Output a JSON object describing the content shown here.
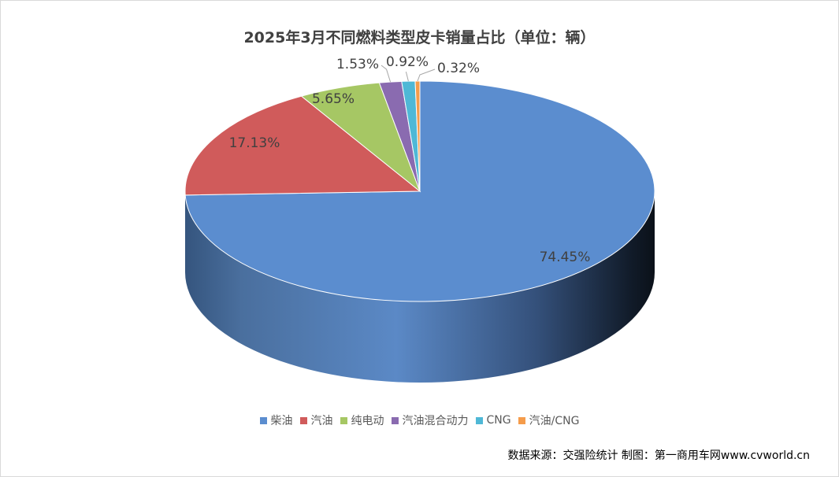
{
  "title": "2025年3月不同燃料类型皮卡销量占比（单位：辆）",
  "source": "数据来源：交强险统计 制图：第一商用车网www.cvworld.cn",
  "chart_data": {
    "type": "pie",
    "style": "3d",
    "title": "2025年3月不同燃料类型皮卡销量占比（单位：辆）",
    "categories": [
      "柴油",
      "汽油",
      "纯电动",
      "汽油混合动力",
      "CNG",
      "汽油/CNG"
    ],
    "values": [
      74.45,
      17.13,
      5.65,
      1.53,
      0.92,
      0.32
    ],
    "labels": [
      "74.45%",
      "17.13%",
      "5.65%",
      "1.53%",
      "0.92%",
      "0.32%"
    ],
    "colors": [
      "#5b8dcf",
      "#d05b5b",
      "#a6c764",
      "#8a6bb0",
      "#4fb8d6",
      "#f59c4b"
    ],
    "legend_position": "bottom"
  },
  "legend": [
    {
      "label": "柴油",
      "color": "#5b8dcf"
    },
    {
      "label": "汽油",
      "color": "#d05b5b"
    },
    {
      "label": "纯电动",
      "color": "#a6c764"
    },
    {
      "label": "汽油混合动力",
      "color": "#8a6bb0"
    },
    {
      "label": "CNG",
      "color": "#4fb8d6"
    },
    {
      "label": "汽油/CNG",
      "color": "#f59c4b"
    }
  ]
}
